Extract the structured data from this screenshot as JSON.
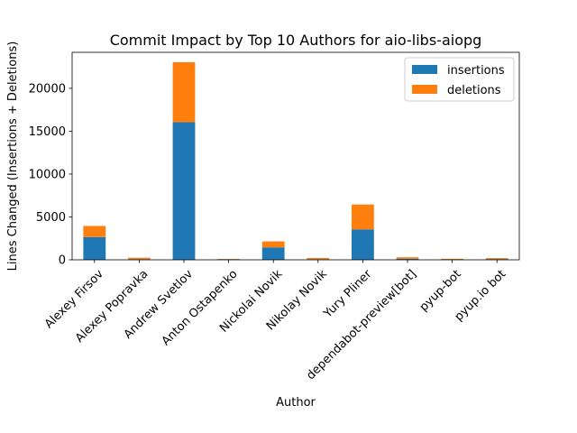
{
  "chart_data": {
    "type": "bar",
    "stacked": true,
    "title": "Commit Impact by Top 10 Authors for aio-libs-aiopg",
    "xlabel": "Author",
    "ylabel": "Lines Changed (Insertions + Deletions)",
    "categories": [
      "Alexey Firsov",
      "Alexey Popravka",
      "Andrew Svetlov",
      "Anton Ostapenko",
      "Nickolai Novik",
      "Nikolay Novik",
      "Yury Pliner",
      "dependabot-preview[bot]",
      "pyup-bot",
      "pyup.io bot"
    ],
    "series": [
      {
        "name": "insertions",
        "color": "#1f77b4",
        "values": [
          2650,
          80,
          16050,
          60,
          1450,
          80,
          3550,
          120,
          50,
          90
        ]
      },
      {
        "name": "deletions",
        "color": "#ff7f0e",
        "values": [
          1300,
          160,
          7000,
          40,
          700,
          140,
          2900,
          180,
          70,
          110
        ]
      }
    ],
    "ylim": [
      0,
      24200
    ],
    "yticks": [
      0,
      5000,
      10000,
      15000,
      20000
    ],
    "legend_position": "top-right",
    "grid": false
  }
}
